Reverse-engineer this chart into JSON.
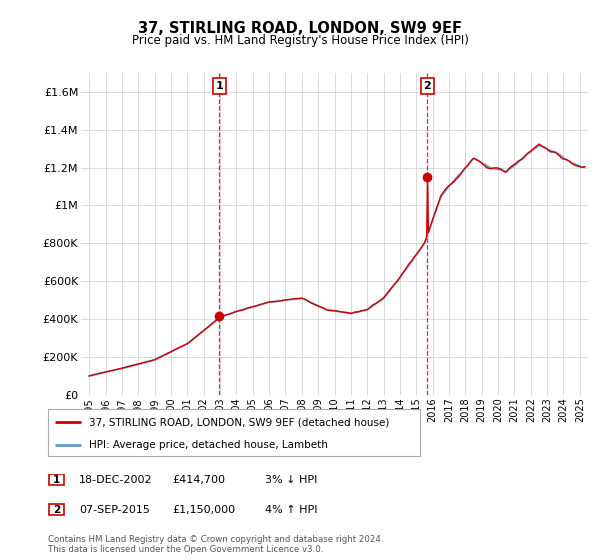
{
  "title": "37, STIRLING ROAD, LONDON, SW9 9EF",
  "subtitle": "Price paid vs. HM Land Registry's House Price Index (HPI)",
  "ylabel_ticks": [
    "£0",
    "£200K",
    "£400K",
    "£600K",
    "£800K",
    "£1M",
    "£1.2M",
    "£1.4M",
    "£1.6M"
  ],
  "ylim": [
    0,
    1700000
  ],
  "yticks": [
    0,
    200000,
    400000,
    600000,
    800000,
    1000000,
    1200000,
    1400000,
    1600000
  ],
  "sale1_x": 2002.96,
  "sale1_y": 414700,
  "sale2_x": 2015.68,
  "sale2_y": 1150000,
  "legend_line1": "37, STIRLING ROAD, LONDON, SW9 9EF (detached house)",
  "legend_line2": "HPI: Average price, detached house, Lambeth",
  "footer": "Contains HM Land Registry data © Crown copyright and database right 2024.\nThis data is licensed under the Open Government Licence v3.0.",
  "line_color_red": "#cc0000",
  "line_color_blue": "#6699cc",
  "fill_color": "#aabbdd",
  "dashed_color": "#cc0000",
  "grid_color": "#cccccc",
  "sale_marker_color": "#cc0000",
  "xmin": 1994.5,
  "xmax": 2025.5,
  "xtick_start": 1995,
  "xtick_end": 2025
}
